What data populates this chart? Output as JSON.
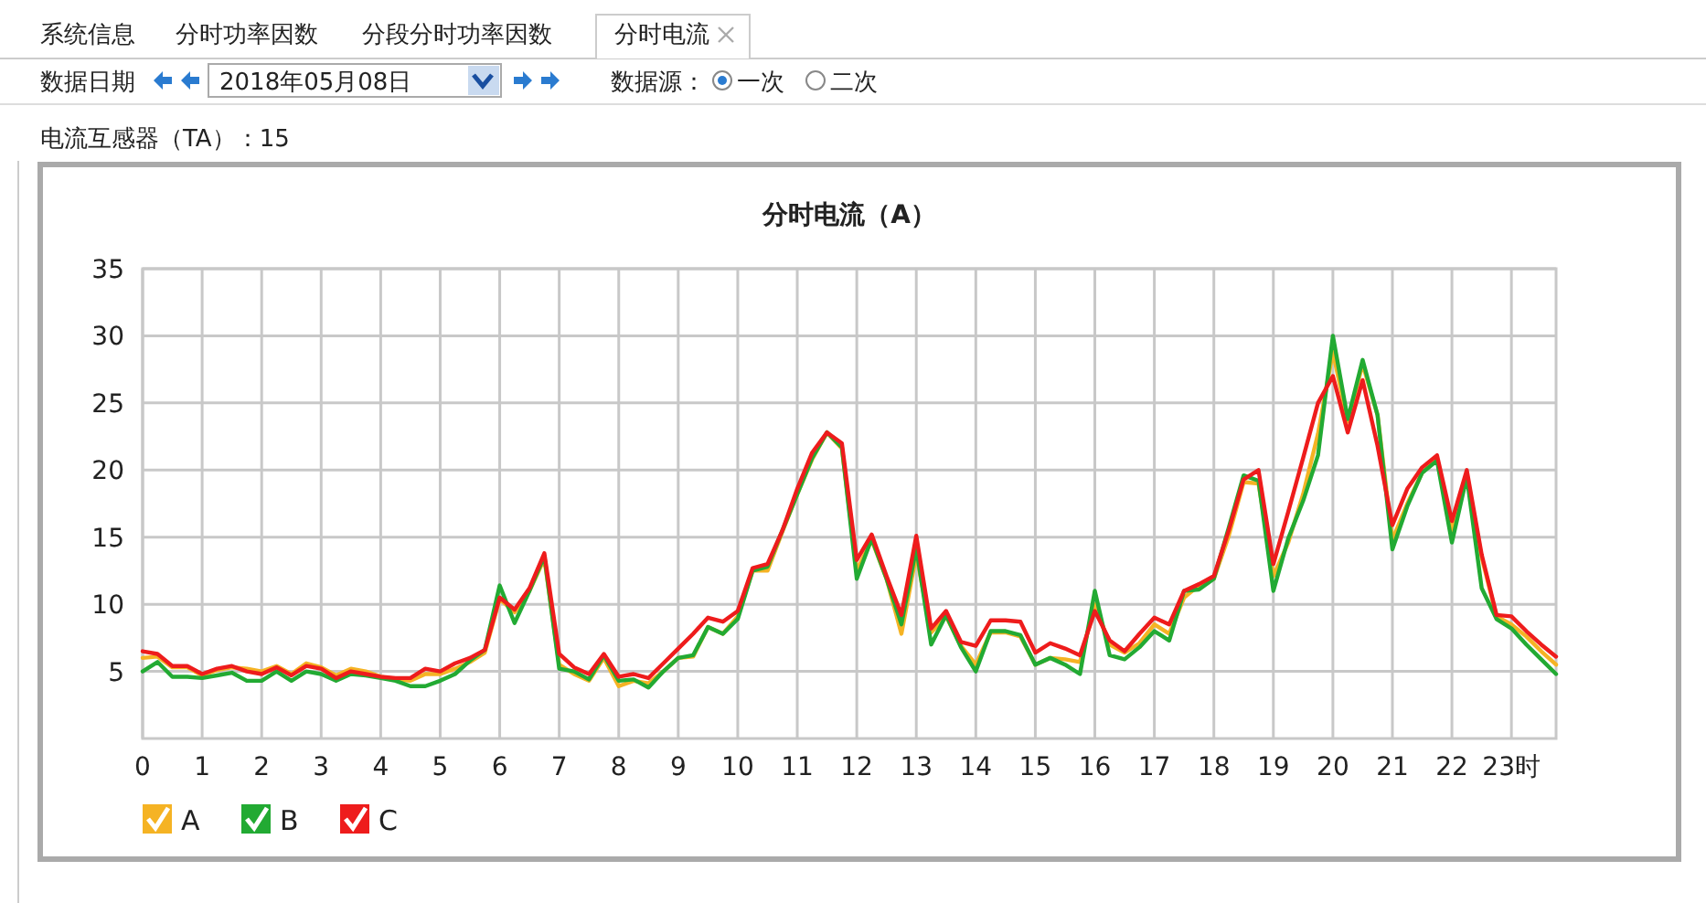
{
  "chart_data": {
    "type": "line",
    "title": "分时电流（A）",
    "annotations": [
      "系统信息",
      "分时功率因数",
      "分段分时功率因数",
      "分时电流",
      "数据日期",
      "2018年05月08日",
      "数据源：",
      "一次",
      "二次",
      "电流互感器（TA）：15"
    ],
    "x": [
      0,
      0.25,
      0.5,
      0.75,
      1,
      1.25,
      1.5,
      1.75,
      2,
      2.25,
      2.5,
      2.75,
      3,
      3.25,
      3.5,
      3.75,
      4,
      4.25,
      4.5,
      4.75,
      5,
      5.25,
      5.5,
      5.75,
      6,
      6.25,
      6.5,
      6.75,
      7,
      7.25,
      7.5,
      7.75,
      8,
      8.25,
      8.5,
      8.75,
      9,
      9.25,
      9.5,
      9.75,
      10,
      10.25,
      10.5,
      10.75,
      11,
      11.25,
      11.5,
      11.75,
      12,
      12.25,
      12.5,
      12.75,
      13,
      13.25,
      13.5,
      13.75,
      14,
      14.25,
      14.5,
      14.75,
      15,
      15.25,
      15.5,
      15.75,
      16,
      16.25,
      16.5,
      16.75,
      17,
      17.25,
      17.5,
      17.75,
      18,
      18.25,
      18.5,
      18.75,
      19,
      19.25,
      19.5,
      19.75,
      20,
      20.25,
      20.5,
      20.75,
      21,
      21.25,
      21.5,
      21.75,
      22,
      22.25,
      22.5,
      22.75,
      23,
      23.25,
      23.5,
      23.75
    ],
    "series": [
      {
        "name": "A",
        "color": "#f5b324",
        "values": [
          6.0,
          6.1,
          5.3,
          5.3,
          4.7,
          5.1,
          5.3,
          5.2,
          5.0,
          5.4,
          4.8,
          5.6,
          5.3,
          4.7,
          5.2,
          5.0,
          4.6,
          4.4,
          4.3,
          4.8,
          4.8,
          5.2,
          5.7,
          6.4,
          10.4,
          9.4,
          11.0,
          13.4,
          5.5,
          4.8,
          4.3,
          6.0,
          3.9,
          4.3,
          4.1,
          5.0,
          6.0,
          6.1,
          8.3,
          7.8,
          9.1,
          12.5,
          12.5,
          15.4,
          18.2,
          20.8,
          22.8,
          21.6,
          12.5,
          14.8,
          11.9,
          7.8,
          13.7,
          7.9,
          9.1,
          6.9,
          5.5,
          7.9,
          7.9,
          7.6,
          5.5,
          6.0,
          5.9,
          5.7,
          10.0,
          7.0,
          6.4,
          7.1,
          8.5,
          7.8,
          10.5,
          11.4,
          11.9,
          15.1,
          19.1,
          19.0,
          12.1,
          14.6,
          18.2,
          22.7,
          28.8,
          23.6,
          27.9,
          24.1,
          14.8,
          17.5,
          19.8,
          20.8,
          15.5,
          19.6,
          13.5,
          9.1,
          8.5,
          7.6,
          6.5,
          5.5
        ]
      },
      {
        "name": "B",
        "color": "#22aa33",
        "values": [
          5.0,
          5.7,
          4.6,
          4.6,
          4.5,
          4.7,
          4.9,
          4.3,
          4.3,
          5.0,
          4.3,
          5.0,
          4.8,
          4.3,
          4.8,
          4.7,
          4.5,
          4.3,
          3.9,
          3.9,
          4.3,
          4.8,
          5.8,
          6.6,
          11.4,
          8.6,
          11.0,
          13.6,
          5.2,
          5.0,
          4.4,
          6.2,
          4.3,
          4.4,
          3.8,
          5.0,
          6.0,
          6.2,
          8.3,
          7.8,
          8.9,
          12.5,
          12.8,
          15.5,
          18.2,
          20.9,
          22.8,
          21.7,
          11.9,
          14.9,
          11.9,
          8.5,
          14.2,
          7.0,
          9.2,
          6.8,
          5.0,
          8.0,
          8.0,
          7.7,
          5.5,
          6.0,
          5.5,
          4.8,
          11.0,
          6.2,
          5.9,
          6.8,
          8.0,
          7.3,
          11.0,
          11.1,
          11.9,
          15.7,
          19.6,
          19.2,
          11.0,
          14.9,
          17.7,
          21.1,
          30.0,
          23.8,
          28.2,
          24.1,
          14.1,
          17.3,
          19.8,
          20.7,
          14.6,
          19.5,
          11.2,
          8.9,
          8.2,
          7.0,
          5.9,
          4.8
        ]
      },
      {
        "name": "C",
        "color": "#ee1c1c",
        "values": [
          6.5,
          6.3,
          5.4,
          5.4,
          4.8,
          5.2,
          5.4,
          5.0,
          4.8,
          5.3,
          4.7,
          5.4,
          5.2,
          4.5,
          5.0,
          4.8,
          4.6,
          4.5,
          4.5,
          5.2,
          5.0,
          5.6,
          6.0,
          6.6,
          10.5,
          9.6,
          11.2,
          13.8,
          6.3,
          5.3,
          4.8,
          6.3,
          4.6,
          4.8,
          4.5,
          5.6,
          6.7,
          7.8,
          9.0,
          8.7,
          9.5,
          12.7,
          13.0,
          15.5,
          18.6,
          21.3,
          22.8,
          22.0,
          13.3,
          15.2,
          12.1,
          9.2,
          15.1,
          8.2,
          9.5,
          7.2,
          6.9,
          8.8,
          8.8,
          8.7,
          6.4,
          7.1,
          6.7,
          6.2,
          9.5,
          7.3,
          6.5,
          7.8,
          9.0,
          8.5,
          11.0,
          11.5,
          12.1,
          15.5,
          19.3,
          20.0,
          13.0,
          16.9,
          20.9,
          25.0,
          27.0,
          22.8,
          26.7,
          21.8,
          15.9,
          18.6,
          20.2,
          21.1,
          16.2,
          20.0,
          13.7,
          9.2,
          9.1,
          8.0,
          7.0,
          6.1
        ]
      }
    ],
    "xlim": [
      0,
      23.75
    ],
    "ylim": [
      0,
      35
    ],
    "xticks": [
      0,
      1,
      2,
      3,
      4,
      5,
      6,
      7,
      8,
      9,
      10,
      11,
      12,
      13,
      14,
      15,
      16,
      17,
      18,
      19,
      20,
      21,
      22,
      {
        "value": 23,
        "label": "23时"
      }
    ],
    "yticks": [
      5,
      10,
      15,
      20,
      25,
      30,
      35
    ],
    "grid": true,
    "legend": "bottom left",
    "marker": "none",
    "line_style": "solid"
  }
}
